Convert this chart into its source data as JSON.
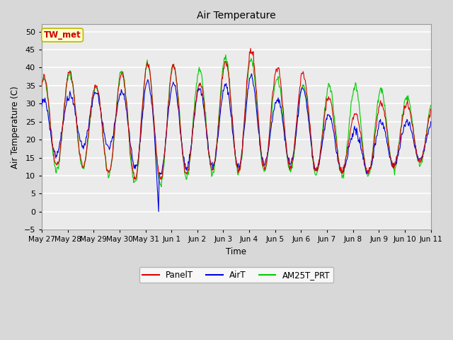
{
  "title": "Air Temperature",
  "ylabel": "Air Temperature (C)",
  "xlabel": "Time",
  "ylim": [
    -5,
    52
  ],
  "yticks": [
    -5,
    0,
    5,
    10,
    15,
    20,
    25,
    30,
    35,
    40,
    45,
    50
  ],
  "fig_bg_color": "#d8d8d8",
  "plot_bg_color": "#ebebeb",
  "grid_color": "white",
  "annotation_text": "TW_met",
  "annotation_color": "#cc0000",
  "annotation_bg": "#ffffcc",
  "annotation_border": "#bbbb00",
  "line_colors": {
    "PanelT": "#dd0000",
    "AirT": "#0000dd",
    "AM25T_PRT": "#00cc00"
  },
  "x_tick_labels": [
    "May 27",
    "May 28",
    "May 29",
    "May 30",
    "May 31",
    "Jun 1",
    "Jun 2",
    "Jun 3",
    "Jun 4",
    "Jun 5",
    "Jun 6",
    "Jun 7",
    "Jun 8",
    "Jun 9",
    "Jun 10",
    "Jun 11"
  ]
}
